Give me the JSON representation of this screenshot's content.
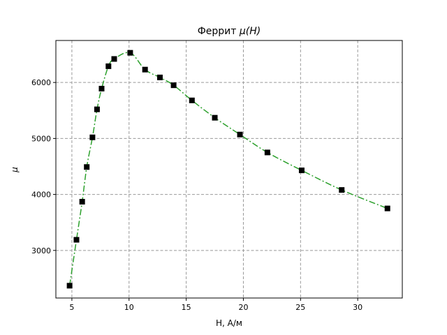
{
  "chart_data": {
    "type": "line",
    "title_prefix": "Феррит ",
    "title_math": "μ(H)",
    "xlabel": "H, А/м",
    "ylabel": "μ",
    "xlim": [
      3.6,
      33.9
    ],
    "ylim": [
      2150,
      6750
    ],
    "xticks": [
      5,
      10,
      15,
      20,
      25,
      30
    ],
    "yticks": [
      3000,
      4000,
      5000,
      6000
    ],
    "grid": true,
    "series": [
      {
        "marker": "square",
        "marker_color": "#000000",
        "line_color": "#2ca02c",
        "line_style": "dash-dot",
        "x": [
          4.8,
          5.4,
          5.9,
          6.3,
          6.8,
          7.2,
          7.6,
          8.2,
          8.7,
          10.1,
          11.4,
          12.7,
          13.9,
          15.5,
          17.5,
          19.7,
          22.1,
          25.1,
          28.6,
          32.6
        ],
        "y": [
          2370,
          3190,
          3870,
          4490,
          5020,
          5520,
          5890,
          6290,
          6420,
          6530,
          6230,
          6090,
          5950,
          5680,
          5370,
          5070,
          4750,
          4430,
          4080,
          3750
        ]
      }
    ]
  }
}
